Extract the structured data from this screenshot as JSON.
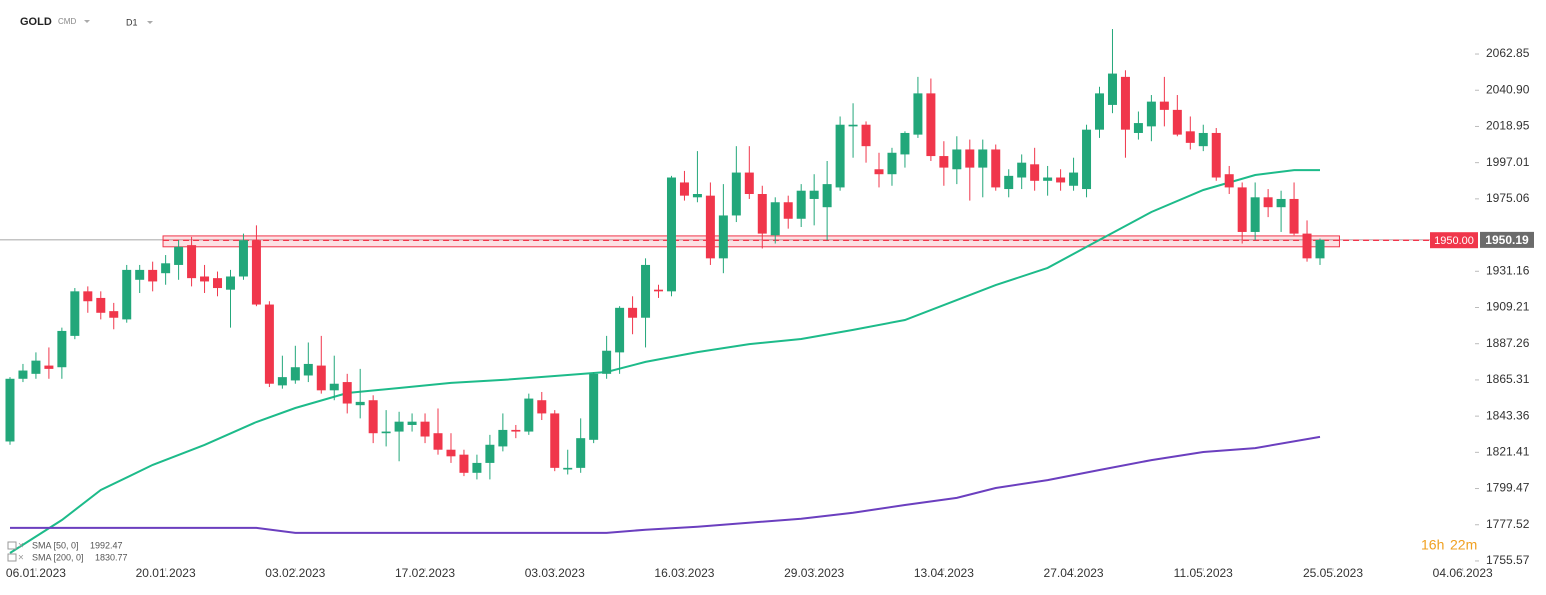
{
  "header": {
    "symbol": "GOLD",
    "market": "CMD",
    "interval": "D1"
  },
  "chart_data": {
    "type": "candlestick",
    "x": [
      0,
      1,
      2,
      3,
      4,
      5,
      6,
      7,
      8,
      9,
      10,
      11,
      12,
      13,
      14,
      15,
      16,
      17,
      18,
      19,
      20,
      21,
      22,
      23,
      24,
      25,
      26,
      27,
      28,
      29,
      30,
      31,
      32,
      33,
      34,
      35,
      36,
      37,
      38,
      39,
      40,
      41,
      42,
      43,
      44,
      45,
      46,
      47,
      48,
      49,
      50,
      51,
      52,
      53,
      54,
      55,
      56,
      57,
      58,
      59,
      60,
      61,
      62,
      63,
      64,
      65,
      66,
      67,
      68,
      69,
      70,
      71,
      72,
      73,
      74,
      75,
      76,
      77,
      78,
      79,
      80,
      81,
      82,
      83,
      84,
      85,
      86,
      87,
      88,
      89,
      90,
      91,
      92,
      93,
      94,
      95,
      96,
      97,
      98,
      99,
      100,
      101
    ],
    "open": [
      1828,
      1866,
      1869,
      1874,
      1873,
      1892,
      1919,
      1915,
      1907,
      1902,
      1926,
      1932,
      1930,
      1935,
      1947,
      1928,
      1927,
      1920,
      1928,
      1950,
      1911,
      1862,
      1865,
      1868,
      1874,
      1859,
      1864,
      1850,
      1853,
      1833,
      1834,
      1838,
      1840,
      1833,
      1823,
      1820,
      1809,
      1815,
      1825,
      1835,
      1834,
      1853,
      1845,
      1811,
      1812,
      1829,
      1869,
      1882,
      1909,
      1903,
      1920,
      1919,
      1985,
      1976,
      1977,
      1939,
      1965,
      1991,
      1978,
      1953,
      1973,
      1963,
      1975,
      1970,
      1982,
      2019,
      2020,
      1993,
      1990,
      2002,
      2014,
      2039,
      2001,
      1993,
      2005,
      1994,
      2005,
      1981,
      1988,
      1996,
      1986,
      1988,
      1983,
      1981,
      2017,
      2032,
      2049,
      2015,
      2019,
      2034,
      2029,
      2016,
      2007,
      2015,
      1990,
      1982,
      1955,
      1976,
      1970,
      1975,
      1954,
      1939
    ],
    "high": [
      1867,
      1875,
      1882,
      1885,
      1897,
      1921,
      1922,
      1919,
      1912,
      1935,
      1935,
      1937,
      1941,
      1950,
      1952,
      1935,
      1931,
      1932,
      1954,
      1959,
      1913,
      1880,
      1886,
      1888,
      1892,
      1880,
      1869,
      1872,
      1856,
      1847,
      1846,
      1845,
      1845,
      1848,
      1833,
      1823,
      1820,
      1832,
      1845,
      1838,
      1857,
      1858,
      1847,
      1823,
      1842,
      1870,
      1892,
      1910,
      1916,
      1939,
      1923,
      1989,
      1992,
      2004,
      1985,
      1984,
      2007,
      2007,
      1983,
      1976,
      1977,
      1984,
      1990,
      1998,
      2025,
      2033,
      2022,
      2003,
      2006,
      2016,
      2049,
      2048,
      2010,
      2013,
      2011,
      2011,
      2008,
      1993,
      2002,
      2006,
      1995,
      1993,
      2000,
      2020,
      2043,
      2078,
      2053,
      2028,
      2038,
      2049,
      2038,
      2025,
      2020,
      2018,
      1995,
      1985,
      1985,
      1981,
      1980,
      1985,
      1962,
      1951
    ],
    "low": [
      1826,
      1864,
      1866,
      1866,
      1866,
      1890,
      1906,
      1902,
      1896,
      1900,
      1918,
      1919,
      1923,
      1926,
      1922,
      1918,
      1916,
      1897,
      1926,
      1910,
      1861,
      1860,
      1863,
      1864,
      1857,
      1853,
      1845,
      1842,
      1827,
      1825,
      1816,
      1834,
      1827,
      1820,
      1815,
      1807,
      1805,
      1805,
      1822,
      1830,
      1832,
      1841,
      1810,
      1808,
      1809,
      1827,
      1866,
      1869,
      1893,
      1885,
      1915,
      1916,
      1974,
      1973,
      1935,
      1930,
      1961,
      1975,
      1945,
      1948,
      1957,
      1958,
      1959,
      1950,
      1980,
      2000,
      1997,
      1982,
      1983,
      1994,
      2012,
      1998,
      1983,
      1984,
      1974,
      1976,
      1980,
      1976,
      1981,
      1980,
      1977,
      1980,
      1980,
      1976,
      2012,
      2027,
      2000,
      2011,
      2010,
      2019,
      2013,
      2005,
      2004,
      1986,
      1978,
      1948,
      1950,
      1964,
      1955,
      1953,
      1937,
      1935
    ],
    "close": [
      1866,
      1871,
      1877,
      1872,
      1895,
      1919,
      1913,
      1906,
      1903,
      1932,
      1932,
      1925,
      1936,
      1946,
      1927,
      1925,
      1921,
      1928,
      1950,
      1911,
      1863,
      1867,
      1873,
      1875,
      1859,
      1863,
      1851,
      1852,
      1833,
      1834,
      1840,
      1840,
      1831,
      1823,
      1819,
      1809,
      1815,
      1826,
      1835,
      1834,
      1854,
      1845,
      1812,
      1812,
      1830,
      1869,
      1883,
      1909,
      1903,
      1935,
      1919,
      1988,
      1977,
      1978,
      1939,
      1965,
      1991,
      1978,
      1954,
      1973,
      1963,
      1980,
      1980,
      1984,
      2020,
      2020,
      2007,
      1990,
      2003,
      2015,
      2039,
      2001,
      1994,
      2005,
      1994,
      2005,
      1982,
      1989,
      1997,
      1986,
      1988,
      1985,
      1991,
      2017,
      2039,
      2051,
      2017,
      2021,
      2034,
      2029,
      2014,
      2009,
      2015,
      1988,
      1982,
      1955,
      1976,
      1970,
      1975,
      1954,
      1939,
      1950.19
    ],
    "up_color": "#22a77a",
    "down_color": "#f0364b",
    "lines": [
      {
        "name": "SMA [50, 0]",
        "legend_value": 1992.47,
        "color": "#1dbb8a",
        "x": [
          0,
          4,
          7,
          11,
          15,
          19,
          22,
          26,
          30,
          34,
          38,
          42,
          46,
          49,
          53,
          57,
          61,
          65,
          69,
          73,
          76,
          80,
          84,
          88,
          92,
          96,
          99,
          101
        ],
        "values": [
          1760.4,
          1780.4,
          1798.6,
          1813.8,
          1825.9,
          1839.8,
          1848.3,
          1857.4,
          1860.4,
          1863.5,
          1865.3,
          1867.7,
          1870.1,
          1876.2,
          1882.2,
          1887.0,
          1890.1,
          1895.6,
          1901.6,
          1913.7,
          1922.8,
          1933.2,
          1950.2,
          1967.1,
          1980.4,
          1989.5,
          1992.5,
          1992.47
        ]
      },
      {
        "name": "SMA [200, 0]",
        "legend_value": 1830.77,
        "color": "#6b3fbf",
        "x": [
          0,
          19,
          22,
          46,
          49,
          53,
          61,
          65,
          69,
          73,
          76,
          80,
          84,
          88,
          92,
          96,
          101
        ],
        "values": [
          1775.6,
          1775.6,
          1772.6,
          1772.6,
          1774.5,
          1776.3,
          1781.2,
          1784.8,
          1789.5,
          1793.8,
          1799.8,
          1804.6,
          1810.7,
          1816.7,
          1821.6,
          1824.0,
          1830.77
        ]
      }
    ],
    "level": {
      "price": {
        "value": 1950,
        "label": "1950.00"
      },
      "band": [
        1946,
        1952.6
      ],
      "x": [
        11.8,
        102.5
      ],
      "color": "#f0364b"
    },
    "last_price": 1950.19,
    "xlim": [
      -0.77,
      112.95
    ],
    "ylim": [
      1751.3,
      2095.6
    ],
    "xticks": [
      {
        "value": 2,
        "label": "06.01.2023"
      },
      {
        "value": 12,
        "label": "20.01.2023"
      },
      {
        "value": 22,
        "label": "03.02.2023"
      },
      {
        "value": 32,
        "label": "17.02.2023"
      },
      {
        "value": 42,
        "label": "03.03.2023"
      },
      {
        "value": 52,
        "label": "16.03.2023"
      },
      {
        "value": 62,
        "label": "29.03.2023"
      },
      {
        "value": 72,
        "label": "13.04.2023"
      },
      {
        "value": 82,
        "label": "27.04.2023"
      },
      {
        "value": 92,
        "label": "11.05.2023"
      },
      {
        "value": 102,
        "label": "25.05.2023"
      },
      {
        "value": 112,
        "label": "04.06.2023"
      }
    ],
    "yticks": [
      2062.85,
      {
        "value": 2040.9,
        "label": "2040.90"
      },
      2018.95,
      1997.01,
      1975.06,
      1931.16,
      1909.21,
      1887.26,
      1865.31,
      1843.36,
      1821.41,
      1799.47,
      1777.52,
      1755.57
    ],
    "countdown": [
      "16h",
      "22m"
    ]
  }
}
